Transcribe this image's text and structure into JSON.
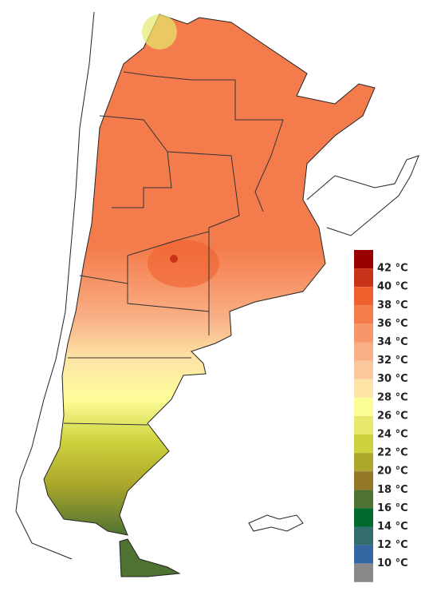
{
  "legend": {
    "labels": [
      "42 °C",
      "40 °C",
      "38 °C",
      "36 °C",
      "34 °C",
      "32 °C",
      "30 °C",
      "28 °C",
      "26 °C",
      "24 °C",
      "22 °C",
      "20 °C",
      "18 °C",
      "16 °C",
      "14 °C",
      "12 °C",
      "10 °C"
    ],
    "colors": [
      "#990000",
      "#c8321a",
      "#f0602e",
      "#f47c4c",
      "#f7966a",
      "#f9ae84",
      "#fbc79c",
      "#fde3a6",
      "#fdfd98",
      "#e6e96c",
      "#cdd23c",
      "#ada82c",
      "#95772a",
      "#4e7232",
      "#00692c",
      "#336e6c",
      "#3466a0",
      "#888888"
    ]
  }
}
